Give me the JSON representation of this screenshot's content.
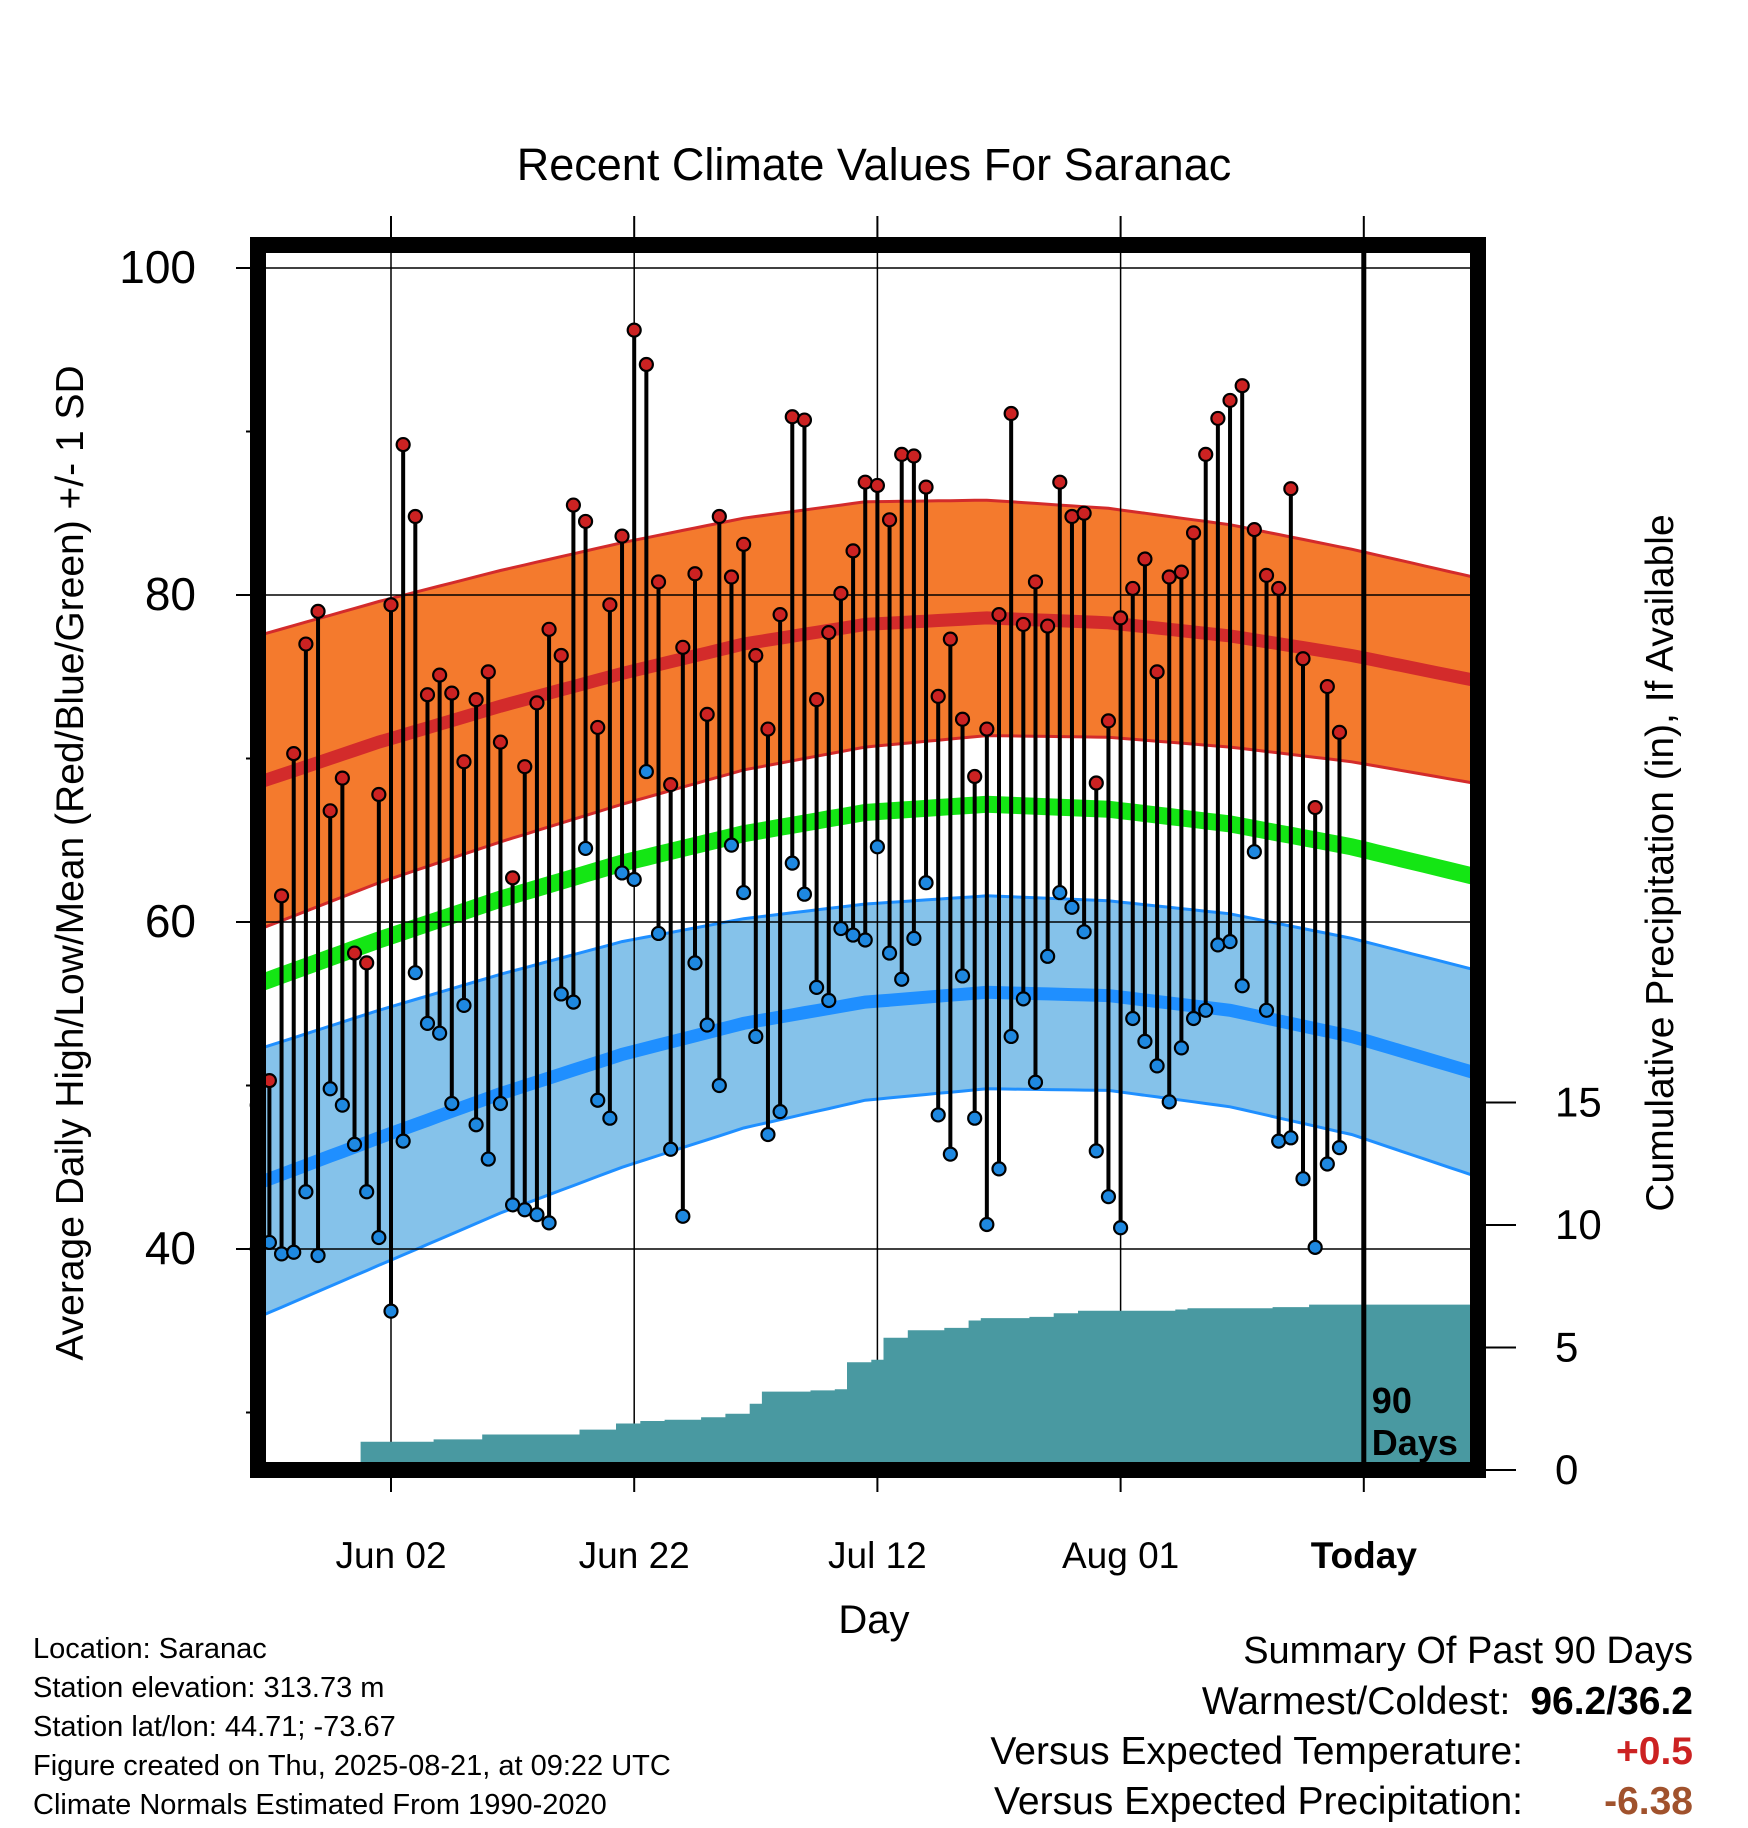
{
  "chart_data": {
    "type": "line",
    "title": "Recent Climate Values For Saranac",
    "xlabel": "Day",
    "ylabel": "Average Daily High/Low/Mean (Red/Blue/Green) +/- 1 SD",
    "y2label": "Cumulative Precipitation (in), If Available",
    "ylim": [
      26,
      102
    ],
    "y2lim": [
      0,
      18
    ],
    "yticks": [
      "40",
      "60",
      "80",
      "100"
    ],
    "y2ticks": [
      "0",
      "5",
      "10",
      "15"
    ],
    "xlim_day_index": [
      -11,
      90
    ],
    "xticks": [
      {
        "day_index": 11,
        "label": "Jun 02"
      },
      {
        "day_index": 31,
        "label": "Jun 22"
      },
      {
        "day_index": 51,
        "label": "Jul 12"
      },
      {
        "day_index": 71,
        "label": "Aug 01"
      },
      {
        "day_index": 91,
        "label": "Today"
      }
    ],
    "start_date": "2025-05-23",
    "period_marker": {
      "day_index": 91,
      "label_line1": "90",
      "label_line2": "Days"
    },
    "normal_band_days": [
      0,
      10,
      20,
      30,
      40,
      50,
      60,
      70,
      80,
      90,
      100
    ],
    "normal_high": [
      68.5,
      71.0,
      73.2,
      75.2,
      77.0,
      78.2,
      78.6,
      78.3,
      77.5,
      76.3,
      74.8
    ],
    "normal_high_sd": [
      9.0,
      8.6,
      8.3,
      8.0,
      7.7,
      7.5,
      7.2,
      7.0,
      6.8,
      6.5,
      6.3
    ],
    "normal_low": [
      44.0,
      46.8,
      49.5,
      51.9,
      53.8,
      55.1,
      55.7,
      55.5,
      54.6,
      53.0,
      50.8
    ],
    "normal_low_sd": [
      8.2,
      7.8,
      7.3,
      6.9,
      6.4,
      6.0,
      5.9,
      5.8,
      5.9,
      6.0,
      6.3
    ],
    "normal_mean": [
      56.2,
      58.9,
      61.4,
      63.6,
      65.4,
      66.7,
      67.2,
      66.9,
      66.0,
      64.6,
      62.8
    ],
    "series": [
      {
        "name": "Red",
        "values": [
          48.8,
          50.3,
          61.6,
          70.3,
          77.0,
          79.0,
          66.8,
          68.8,
          58.1,
          57.5,
          67.8,
          79.4,
          89.2,
          84.8,
          73.9,
          75.1,
          74.0,
          69.8,
          73.6,
          75.3,
          71.0,
          62.7,
          69.5,
          73.4,
          77.9,
          76.3,
          85.5,
          84.5,
          71.9,
          79.4,
          83.6,
          96.2,
          94.1,
          80.8,
          68.4,
          76.8,
          81.3,
          72.7,
          84.8,
          81.1,
          83.1,
          76.3,
          71.8,
          78.8,
          90.9,
          90.7,
          73.6,
          77.7,
          80.1,
          82.7,
          86.9,
          86.7,
          84.6,
          88.6,
          88.5,
          86.6,
          73.8,
          77.3,
          72.4,
          68.9,
          71.8,
          78.8,
          91.1,
          78.2,
          80.8,
          78.1,
          86.9,
          84.8,
          85.0,
          68.5,
          72.3,
          78.6,
          80.4,
          82.2,
          75.3,
          81.1,
          81.4,
          83.8,
          88.6,
          90.8,
          91.9,
          92.8,
          84.0,
          81.2,
          80.4,
          86.5,
          76.1,
          67.0,
          74.4,
          71.6
        ]
      },
      {
        "name": "Blue",
        "values": [
          40.0,
          40.4,
          39.7,
          39.8,
          43.5,
          39.6,
          49.8,
          48.8,
          46.4,
          43.5,
          40.7,
          36.2,
          46.6,
          56.9,
          53.8,
          53.2,
          48.9,
          54.9,
          47.6,
          45.5,
          48.9,
          42.7,
          42.4,
          42.1,
          41.6,
          55.6,
          55.1,
          64.5,
          49.1,
          48.0,
          63.0,
          62.6,
          69.2,
          59.3,
          46.1,
          42.0,
          57.5,
          53.7,
          50.0,
          64.7,
          61.8,
          53.0,
          47.0,
          48.4,
          63.6,
          61.7,
          56.0,
          55.2,
          59.6,
          59.2,
          58.9,
          64.6,
          58.1,
          56.5,
          59.0,
          62.4,
          48.2,
          45.8,
          56.7,
          48.0,
          41.5,
          44.9,
          53.0,
          55.3,
          50.2,
          57.9,
          61.8,
          60.9,
          59.4,
          46.0,
          43.2,
          41.3,
          54.1,
          52.7,
          51.2,
          49.0,
          52.3,
          54.1,
          54.6,
          58.6,
          58.8,
          56.1,
          64.3,
          54.6,
          46.6,
          46.8,
          44.3,
          40.1,
          45.2,
          46.2
        ]
      }
    ],
    "precip_cumulative_steps": [
      {
        "day_index": 0,
        "value": 0.0
      },
      {
        "day_index": 5.5,
        "value": 0.1
      },
      {
        "day_index": 7.5,
        "value": 0.3
      },
      {
        "day_index": 8.5,
        "value": 1.15
      },
      {
        "day_index": 14.5,
        "value": 1.25
      },
      {
        "day_index": 18.5,
        "value": 1.45
      },
      {
        "day_index": 26.5,
        "value": 1.65
      },
      {
        "day_index": 29.5,
        "value": 1.9
      },
      {
        "day_index": 31.5,
        "value": 2.0
      },
      {
        "day_index": 33.5,
        "value": 2.05
      },
      {
        "day_index": 36.5,
        "value": 2.15
      },
      {
        "day_index": 38.5,
        "value": 2.3
      },
      {
        "day_index": 40.5,
        "value": 2.7
      },
      {
        "day_index": 41.5,
        "value": 3.2
      },
      {
        "day_index": 45.5,
        "value": 3.25
      },
      {
        "day_index": 47.5,
        "value": 3.3
      },
      {
        "day_index": 48.5,
        "value": 4.4
      },
      {
        "day_index": 50.5,
        "value": 4.5
      },
      {
        "day_index": 51.5,
        "value": 5.4
      },
      {
        "day_index": 53.5,
        "value": 5.7
      },
      {
        "day_index": 56.5,
        "value": 5.8
      },
      {
        "day_index": 58.5,
        "value": 6.1
      },
      {
        "day_index": 59.5,
        "value": 6.2
      },
      {
        "day_index": 63.5,
        "value": 6.25
      },
      {
        "day_index": 65.5,
        "value": 6.4
      },
      {
        "day_index": 67.5,
        "value": 6.5
      },
      {
        "day_index": 75.5,
        "value": 6.55
      },
      {
        "day_index": 76.5,
        "value": 6.6
      },
      {
        "day_index": 83.5,
        "value": 6.65
      },
      {
        "day_index": 86.5,
        "value": 6.75
      },
      {
        "day_index": 100,
        "value": 6.75
      }
    ],
    "colors": {
      "high_band": "#f47a2d",
      "high_line": "#d32b2b",
      "low_band": "#85c2ea",
      "low_line": "#1f8fff",
      "mean_line": "#14e614",
      "precip": "#4999a1",
      "high_marker": "#cc2222",
      "low_marker": "#1e88e0",
      "stem": "#000000",
      "frame": "#000000"
    }
  },
  "info": {
    "location": "Location: Saranac",
    "elevation": "Station elevation: 313.73 m",
    "latlon": "Station lat/lon: 44.71; -73.67",
    "created": "Figure created on Thu, 2025-08-21, at 09:22 UTC",
    "normals": "Climate Normals Estimated From 1990-2020"
  },
  "summary": {
    "heading": "Summary Of Past 90 Days",
    "warm_cold_label": "Warmest/Coldest:",
    "warm_cold_value": "96.2/36.2",
    "temp_label": "Versus Expected Temperature:",
    "temp_value": "+0.5",
    "temp_color": "#cc2222",
    "precip_label": "Versus Expected Precipitation:",
    "precip_value": "-6.38",
    "precip_color": "#a0522d"
  }
}
